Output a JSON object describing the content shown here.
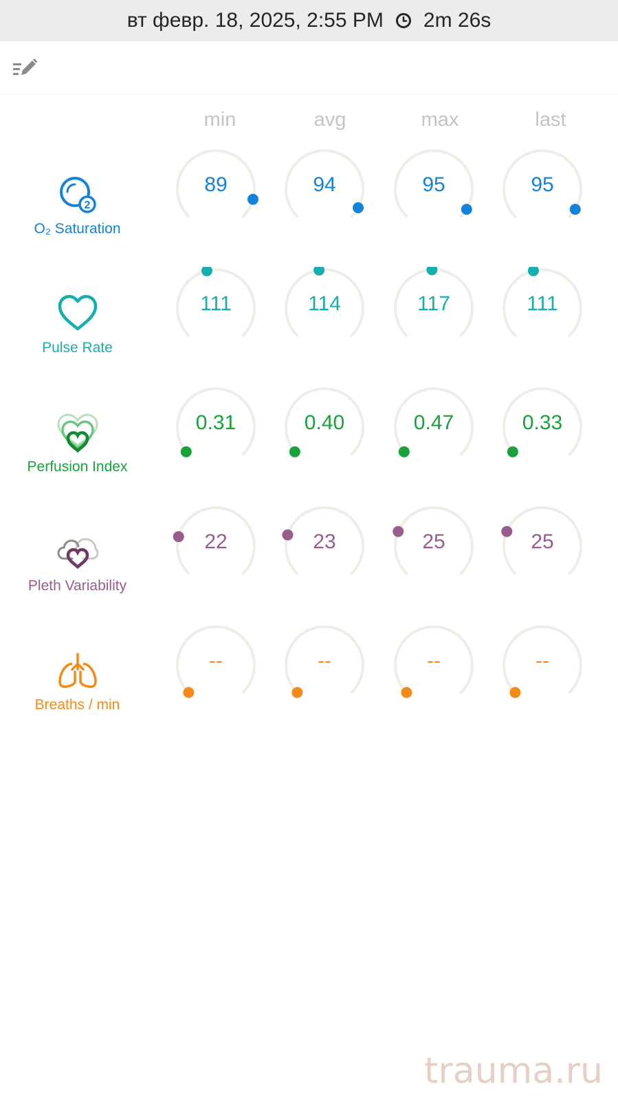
{
  "header": {
    "datetime": "вт февр. 18, 2025, 2:55 PM",
    "duration": "2m 26s"
  },
  "columns": [
    "min",
    "avg",
    "max",
    "last"
  ],
  "colors": {
    "spo2": "#1482d8",
    "pulse": "#17aeae",
    "perfusion": "#19a23c",
    "pleth": "#9a5c8c",
    "breaths": "#f28b17",
    "track": "#efede6",
    "column_header": "#c4c4c4"
  },
  "metrics": [
    {
      "key": "spo2",
      "label": "O₂ Saturation",
      "icon": "o2-bubble-icon",
      "values": [
        "89",
        "94",
        "95",
        "95"
      ],
      "levels": [
        0.89,
        0.94,
        0.95,
        0.95
      ]
    },
    {
      "key": "pulse",
      "label": "Pulse Rate",
      "icon": "heart-icon",
      "values": [
        "111",
        "114",
        "117",
        "111"
      ],
      "levels": [
        0.45,
        0.47,
        0.49,
        0.45
      ]
    },
    {
      "key": "perfusion",
      "label": "Perfusion Index",
      "icon": "layered-hearts-icon",
      "values": [
        "0.31",
        "0.40",
        "0.47",
        "0.33"
      ],
      "levels": [
        0.02,
        0.02,
        0.02,
        0.02
      ]
    },
    {
      "key": "pleth",
      "label": "Pleth Variability",
      "icon": "clouds-heart-icon",
      "values": [
        "22",
        "23",
        "25",
        "25"
      ],
      "levels": [
        0.22,
        0.23,
        0.25,
        0.25
      ]
    },
    {
      "key": "breaths",
      "label": "Breaths / min",
      "icon": "lungs-icon",
      "values": [
        "--",
        "--",
        "--",
        "--"
      ],
      "levels": [
        0,
        0,
        0,
        0
      ]
    }
  ],
  "watermark": "trauma.ru"
}
